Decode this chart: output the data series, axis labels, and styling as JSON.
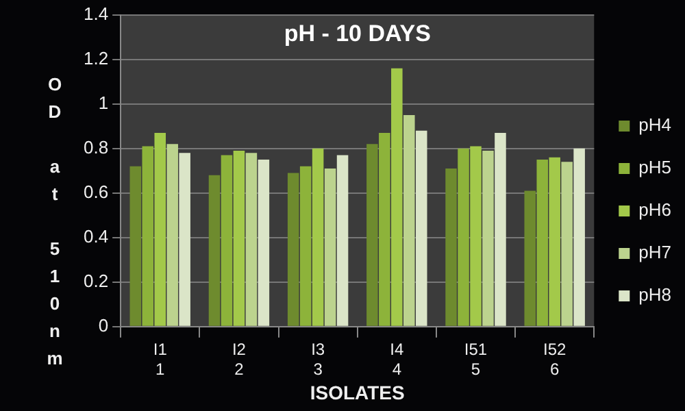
{
  "chart_data": {
    "type": "bar",
    "title": "pH - 10 DAYS",
    "xlabel": "ISOLATES",
    "ylabel": "OD at 510nm",
    "categories": [
      "I1\n1",
      "I2\n2",
      "I3\n3",
      "I4\n4",
      "I51\n5",
      "I52\n6"
    ],
    "series": [
      {
        "name": "pH4",
        "color": "#6e8b2e",
        "values": [
          0.72,
          0.68,
          0.69,
          0.82,
          0.71,
          0.61
        ]
      },
      {
        "name": "pH5",
        "color": "#8db33a",
        "values": [
          0.81,
          0.77,
          0.72,
          0.87,
          0.8,
          0.75
        ]
      },
      {
        "name": "pH6",
        "color": "#a3c94a",
        "values": [
          0.87,
          0.79,
          0.8,
          1.16,
          0.81,
          0.76
        ]
      },
      {
        "name": "pH7",
        "color": "#bcd38e",
        "values": [
          0.82,
          0.78,
          0.71,
          0.95,
          0.79,
          0.74
        ]
      },
      {
        "name": "pH8",
        "color": "#dbe5c8",
        "values": [
          0.78,
          0.75,
          0.77,
          0.88,
          0.87,
          0.8
        ]
      }
    ],
    "ylim": [
      0,
      1.4
    ],
    "yticks": [
      0,
      0.2,
      0.4,
      0.6,
      0.8,
      1,
      1.2,
      1.4
    ],
    "grid": "y",
    "legend": "right"
  }
}
